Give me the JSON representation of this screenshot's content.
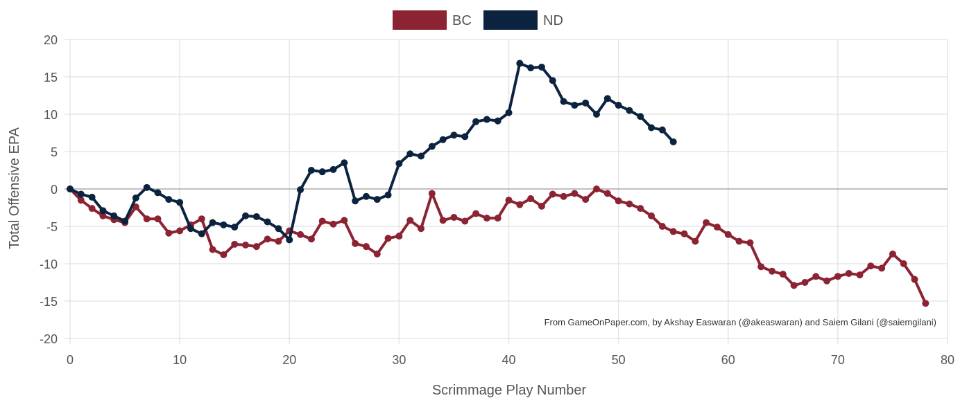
{
  "colors": {
    "bc": "#8b2332",
    "nd": "#0c2340",
    "grid": "#e5e5e5",
    "zero_line": "#aaaaaa",
    "text": "#555555"
  },
  "chart_data": {
    "type": "line",
    "xlabel": "Scrimmage Play Number",
    "ylabel": "Total Offensive EPA",
    "xlim": [
      0,
      80
    ],
    "ylim": [
      -20,
      20
    ],
    "x_ticks": [
      0,
      10,
      20,
      30,
      40,
      50,
      60,
      70,
      80
    ],
    "y_ticks": [
      20,
      15,
      10,
      5,
      0,
      -5,
      -10,
      -15,
      -20
    ],
    "grid": true,
    "legend_position": "top-center",
    "annotation": "From GameOnPaper.com, by Akshay Easwaran (@akeaswaran) and Saiem Gilani (@saiemgilani)",
    "series": [
      {
        "name": "BC",
        "color": "#8b2332",
        "x": [
          0,
          1,
          2,
          3,
          4,
          5,
          6,
          7,
          8,
          9,
          10,
          11,
          12,
          13,
          14,
          15,
          16,
          17,
          18,
          19,
          20,
          21,
          22,
          23,
          24,
          25,
          26,
          27,
          28,
          29,
          30,
          31,
          32,
          33,
          34,
          35,
          36,
          37,
          38,
          39,
          40,
          41,
          42,
          43,
          44,
          45,
          46,
          47,
          48,
          49,
          50,
          51,
          52,
          53,
          54,
          55,
          56,
          57,
          58,
          59,
          60,
          61,
          62,
          63,
          64,
          65,
          66,
          67,
          68,
          69,
          70,
          71,
          72,
          73,
          74,
          75,
          76,
          77,
          78
        ],
        "values": [
          0,
          -1.5,
          -2.6,
          -3.6,
          -4.1,
          -4.5,
          -2.4,
          -4.0,
          -4.0,
          -5.9,
          -5.6,
          -4.8,
          -4.0,
          -8.1,
          -8.8,
          -7.4,
          -7.5,
          -7.7,
          -6.7,
          -7.0,
          -5.6,
          -6.1,
          -6.7,
          -4.3,
          -4.7,
          -4.2,
          -7.3,
          -7.7,
          -8.7,
          -6.6,
          -6.3,
          -4.2,
          -5.3,
          -0.6,
          -4.2,
          -3.8,
          -4.3,
          -3.3,
          -3.9,
          -3.9,
          -1.5,
          -2.1,
          -1.3,
          -2.3,
          -0.7,
          -1.0,
          -0.6,
          -1.4,
          0.0,
          -0.6,
          -1.6,
          -2.0,
          -2.6,
          -3.6,
          -5.0,
          -5.7,
          -6.0,
          -7.0,
          -4.5,
          -5.1,
          -6.1,
          -7.0,
          -7.2,
          -10.4,
          -11.0,
          -11.4,
          -12.9,
          -12.5,
          -11.7,
          -12.3,
          -11.7,
          -11.3,
          -11.5,
          -10.3,
          -10.6,
          -8.7,
          -10.0,
          -12.1,
          -15.3
        ]
      },
      {
        "name": "ND",
        "color": "#0c2340",
        "x": [
          0,
          1,
          2,
          3,
          4,
          5,
          6,
          7,
          8,
          9,
          10,
          11,
          12,
          13,
          14,
          15,
          16,
          17,
          18,
          19,
          20,
          21,
          22,
          23,
          24,
          25,
          26,
          27,
          28,
          29,
          30,
          31,
          32,
          33,
          34,
          35,
          36,
          37,
          38,
          39,
          40,
          41,
          42,
          43,
          44,
          45,
          46,
          47,
          48,
          49,
          50,
          51,
          52,
          53,
          54,
          55
        ],
        "values": [
          0,
          -0.7,
          -1.1,
          -2.9,
          -3.6,
          -4.3,
          -1.2,
          0.2,
          -0.5,
          -1.4,
          -1.8,
          -5.3,
          -6.0,
          -4.5,
          -4.8,
          -5.1,
          -3.6,
          -3.7,
          -4.4,
          -5.3,
          -6.8,
          -0.1,
          2.5,
          2.3,
          2.6,
          3.5,
          -1.6,
          -1.0,
          -1.4,
          -0.8,
          3.4,
          4.7,
          4.4,
          5.7,
          6.6,
          7.2,
          7.0,
          9.0,
          9.3,
          9.1,
          10.2,
          16.8,
          16.2,
          16.3,
          14.5,
          11.7,
          11.2,
          11.5,
          10.0,
          12.1,
          11.2,
          10.5,
          9.7,
          8.2,
          7.9,
          6.3
        ]
      }
    ]
  }
}
